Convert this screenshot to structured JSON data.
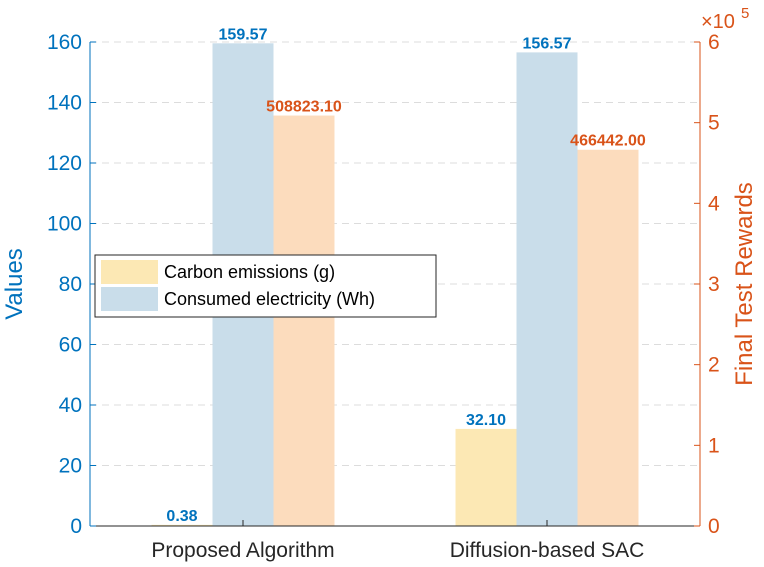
{
  "chart_data": {
    "type": "bar",
    "categories": [
      "Proposed Algorithm",
      "Diffusion-based SAC"
    ],
    "series": [
      {
        "name": "Carbon emissions (g)",
        "axis": "left",
        "values": [
          0.38,
          32.1
        ],
        "color": "#FCE8B4",
        "labels": [
          "0.38",
          "32.10"
        ]
      },
      {
        "name": "Consumed electricity (Wh)",
        "axis": "left",
        "values": [
          159.57,
          156.57
        ],
        "color": "#C9DDEA",
        "labels": [
          "159.57",
          "156.57"
        ]
      },
      {
        "name": "",
        "axis": "right",
        "values": [
          508823.1,
          466442.0
        ],
        "color": "#FCDCBD",
        "labels": [
          "508823.10",
          "466442.00"
        ]
      }
    ],
    "ylabel_left": "Values",
    "ylabel_right": "Final Test Rewards",
    "ylim_left": [
      0,
      160
    ],
    "ylim_right": [
      0,
      600000
    ],
    "yticks_left": [
      "0",
      "20",
      "40",
      "60",
      "80",
      "100",
      "120",
      "140",
      "160"
    ],
    "yticks_right": [
      "0",
      "1",
      "2",
      "3",
      "4",
      "5",
      "6"
    ],
    "right_axis_multiplier": "×10",
    "right_axis_exponent": "5",
    "grid": "horizontal dashed",
    "legend_position": "middle-left",
    "left_axis_color": "#0072BD",
    "right_axis_color": "#D95319"
  }
}
